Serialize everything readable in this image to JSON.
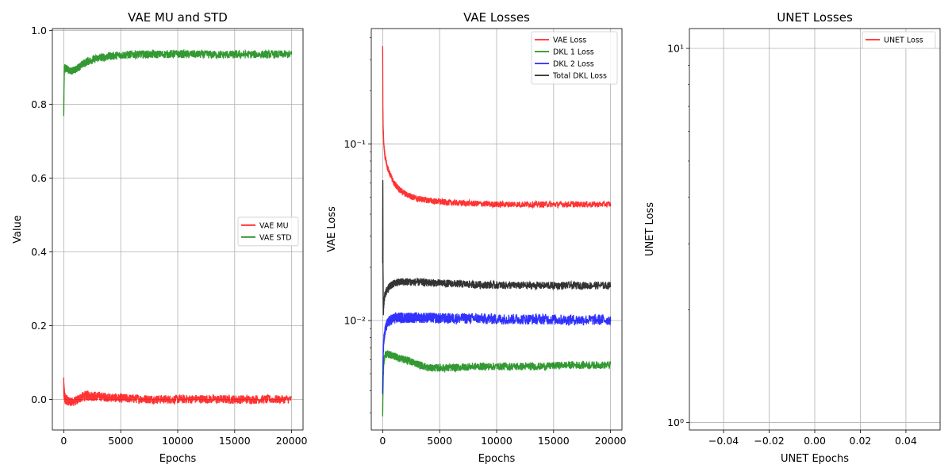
{
  "chart_data": [
    {
      "type": "line",
      "title": "VAE MU and STD",
      "xlabel": "Epochs",
      "ylabel": "Value",
      "xlim": [
        -1000,
        21000
      ],
      "ylim": [
        -0.083,
        1.005
      ],
      "xticks": [
        0,
        5000,
        10000,
        15000,
        20000
      ],
      "xtick_labels": [
        "0",
        "5000",
        "10000",
        "15000",
        "20000"
      ],
      "yticks": [
        0.0,
        0.2,
        0.4,
        0.6,
        0.8,
        1.0
      ],
      "ytick_labels": [
        "0.0",
        "0.2",
        "0.4",
        "0.6",
        "0.8",
        "1.0"
      ],
      "yscale": "linear",
      "grid": true,
      "legend": "center-right",
      "series": [
        {
          "name": "VAE MU",
          "color": "#ff0000",
          "x": [
            0,
            50,
            100,
            200,
            400,
            700,
            1000,
            1500,
            2000,
            3000,
            4000,
            5000,
            6000,
            8000,
            10000,
            12000,
            14000,
            16000,
            18000,
            20000
          ],
          "y": [
            0.03,
            0.012,
            0.004,
            0.0,
            -0.005,
            -0.007,
            -0.005,
            0.005,
            0.01,
            0.008,
            0.005,
            0.003,
            0.002,
            0.0,
            0.0,
            0.001,
            0.0,
            0.0,
            0.0,
            0.0
          ],
          "spread": [
            0.03,
            0.02,
            0.016,
            0.014,
            0.012,
            0.012,
            0.012,
            0.013,
            0.014,
            0.013,
            0.012,
            0.012,
            0.012,
            0.012,
            0.012,
            0.012,
            0.012,
            0.012,
            0.012,
            0.011
          ]
        },
        {
          "name": "VAE STD",
          "color": "#008000",
          "x": [
            0,
            30,
            60,
            100,
            200,
            400,
            700,
            1000,
            1500,
            2000,
            3000,
            4000,
            5000,
            6000,
            8000,
            10000,
            12000,
            14000,
            16000,
            18000,
            20000
          ],
          "y": [
            0.78,
            0.86,
            0.895,
            0.9,
            0.898,
            0.893,
            0.89,
            0.893,
            0.905,
            0.915,
            0.925,
            0.93,
            0.933,
            0.935,
            0.935,
            0.936,
            0.935,
            0.934,
            0.935,
            0.935,
            0.935
          ],
          "spread": [
            0.03,
            0.015,
            0.01,
            0.01,
            0.01,
            0.01,
            0.01,
            0.01,
            0.011,
            0.011,
            0.011,
            0.011,
            0.011,
            0.011,
            0.011,
            0.011,
            0.011,
            0.011,
            0.011,
            0.011,
            0.011
          ]
        }
      ]
    },
    {
      "type": "line",
      "title": "VAE Losses",
      "xlabel": "Epochs",
      "ylabel": "VAE Loss",
      "xlim": [
        -1000,
        21000
      ],
      "ylim": [
        0.0024,
        0.45
      ],
      "xticks": [
        0,
        5000,
        10000,
        15000,
        20000
      ],
      "xtick_labels": [
        "0",
        "5000",
        "10000",
        "15000",
        "20000"
      ],
      "yticks": [
        0.01,
        0.1
      ],
      "ytick_labels": [
        "10⁻²",
        "10⁻¹"
      ],
      "yscale": "log",
      "grid": true,
      "legend": "top-right",
      "series": [
        {
          "name": "VAE Loss",
          "color": "#ff0000",
          "x": [
            0,
            20,
            50,
            100,
            200,
            400,
            700,
            1000,
            1500,
            2000,
            3000,
            4000,
            5000,
            6000,
            8000,
            10000,
            12000,
            14000,
            16000,
            18000,
            20000
          ],
          "y": [
            0.35,
            0.16,
            0.12,
            0.1,
            0.085,
            0.074,
            0.066,
            0.06,
            0.055,
            0.052,
            0.049,
            0.048,
            0.047,
            0.0465,
            0.046,
            0.0455,
            0.0455,
            0.0455,
            0.0455,
            0.0455,
            0.0455
          ],
          "spread": [
            0.08,
            0.05,
            0.045,
            0.04,
            0.04,
            0.04,
            0.04,
            0.04,
            0.04,
            0.04,
            0.04,
            0.04,
            0.04,
            0.04,
            0.04,
            0.04,
            0.04,
            0.04,
            0.04,
            0.04,
            0.04
          ]
        },
        {
          "name": "DKL 1 Loss",
          "color": "#008000",
          "x": [
            0,
            30,
            60,
            100,
            200,
            400,
            700,
            1000,
            1500,
            2000,
            3000,
            4000,
            5000,
            6000,
            8000,
            10000,
            12000,
            14000,
            16000,
            18000,
            20000
          ],
          "y": [
            0.003,
            0.004,
            0.005,
            0.0058,
            0.0064,
            0.0065,
            0.0064,
            0.0063,
            0.0061,
            0.006,
            0.0057,
            0.0054,
            0.0054,
            0.0054,
            0.0055,
            0.0055,
            0.0055,
            0.0055,
            0.0056,
            0.0056,
            0.0056
          ],
          "spread": [
            0.06,
            0.05,
            0.05,
            0.05,
            0.05,
            0.05,
            0.05,
            0.05,
            0.05,
            0.05,
            0.05,
            0.05,
            0.05,
            0.05,
            0.05,
            0.05,
            0.05,
            0.05,
            0.05,
            0.05,
            0.05
          ]
        },
        {
          "name": "DKL 2 Loss",
          "color": "#0000ff",
          "x": [
            0,
            30,
            60,
            100,
            200,
            400,
            700,
            1000,
            1500,
            2000,
            3000,
            4000,
            5000,
            6000,
            8000,
            10000,
            12000,
            14000,
            16000,
            18000,
            20000
          ],
          "y": [
            0.004,
            0.0055,
            0.0068,
            0.0078,
            0.0088,
            0.0096,
            0.0101,
            0.0103,
            0.0104,
            0.0104,
            0.0104,
            0.0104,
            0.0103,
            0.0103,
            0.0103,
            0.0102,
            0.0102,
            0.0102,
            0.0101,
            0.0101,
            0.0101
          ],
          "spread": [
            0.08,
            0.07,
            0.07,
            0.07,
            0.07,
            0.07,
            0.07,
            0.07,
            0.07,
            0.07,
            0.07,
            0.07,
            0.07,
            0.07,
            0.07,
            0.07,
            0.07,
            0.07,
            0.07,
            0.07,
            0.07
          ]
        },
        {
          "name": "Total DKL Loss",
          "color": "#000000",
          "x": [
            0,
            15,
            30,
            60,
            100,
            200,
            400,
            700,
            1000,
            1500,
            2000,
            3000,
            4000,
            5000,
            6000,
            8000,
            10000,
            12000,
            14000,
            16000,
            18000,
            20000
          ],
          "y": [
            0.022,
            0.065,
            0.02,
            0.011,
            0.0125,
            0.014,
            0.015,
            0.0158,
            0.0163,
            0.0165,
            0.0166,
            0.0165,
            0.0164,
            0.0163,
            0.0162,
            0.016,
            0.0159,
            0.0158,
            0.0158,
            0.0158,
            0.0158,
            0.0158
          ],
          "spread": [
            0.1,
            0.1,
            0.08,
            0.06,
            0.05,
            0.05,
            0.05,
            0.05,
            0.05,
            0.05,
            0.05,
            0.05,
            0.05,
            0.05,
            0.05,
            0.05,
            0.05,
            0.05,
            0.05,
            0.05,
            0.05,
            0.05
          ]
        }
      ]
    },
    {
      "type": "line",
      "title": "UNET Losses",
      "xlabel": "UNET Epochs",
      "ylabel": "UNET Loss",
      "xlim": [
        -0.055,
        0.055
      ],
      "ylim": [
        0.955,
        11.3
      ],
      "xticks": [
        -0.04,
        -0.02,
        0.0,
        0.02,
        0.04
      ],
      "xtick_labels": [
        "−0.04",
        "−0.02",
        "0.00",
        "0.02",
        "0.04"
      ],
      "yticks": [
        1,
        10
      ],
      "ytick_labels": [
        "10⁰",
        "10¹"
      ],
      "yscale": "log",
      "grid": true,
      "legend": "top-right",
      "series": [
        {
          "name": "UNET Loss",
          "color": "#ff0000",
          "x": [],
          "y": []
        }
      ]
    }
  ]
}
